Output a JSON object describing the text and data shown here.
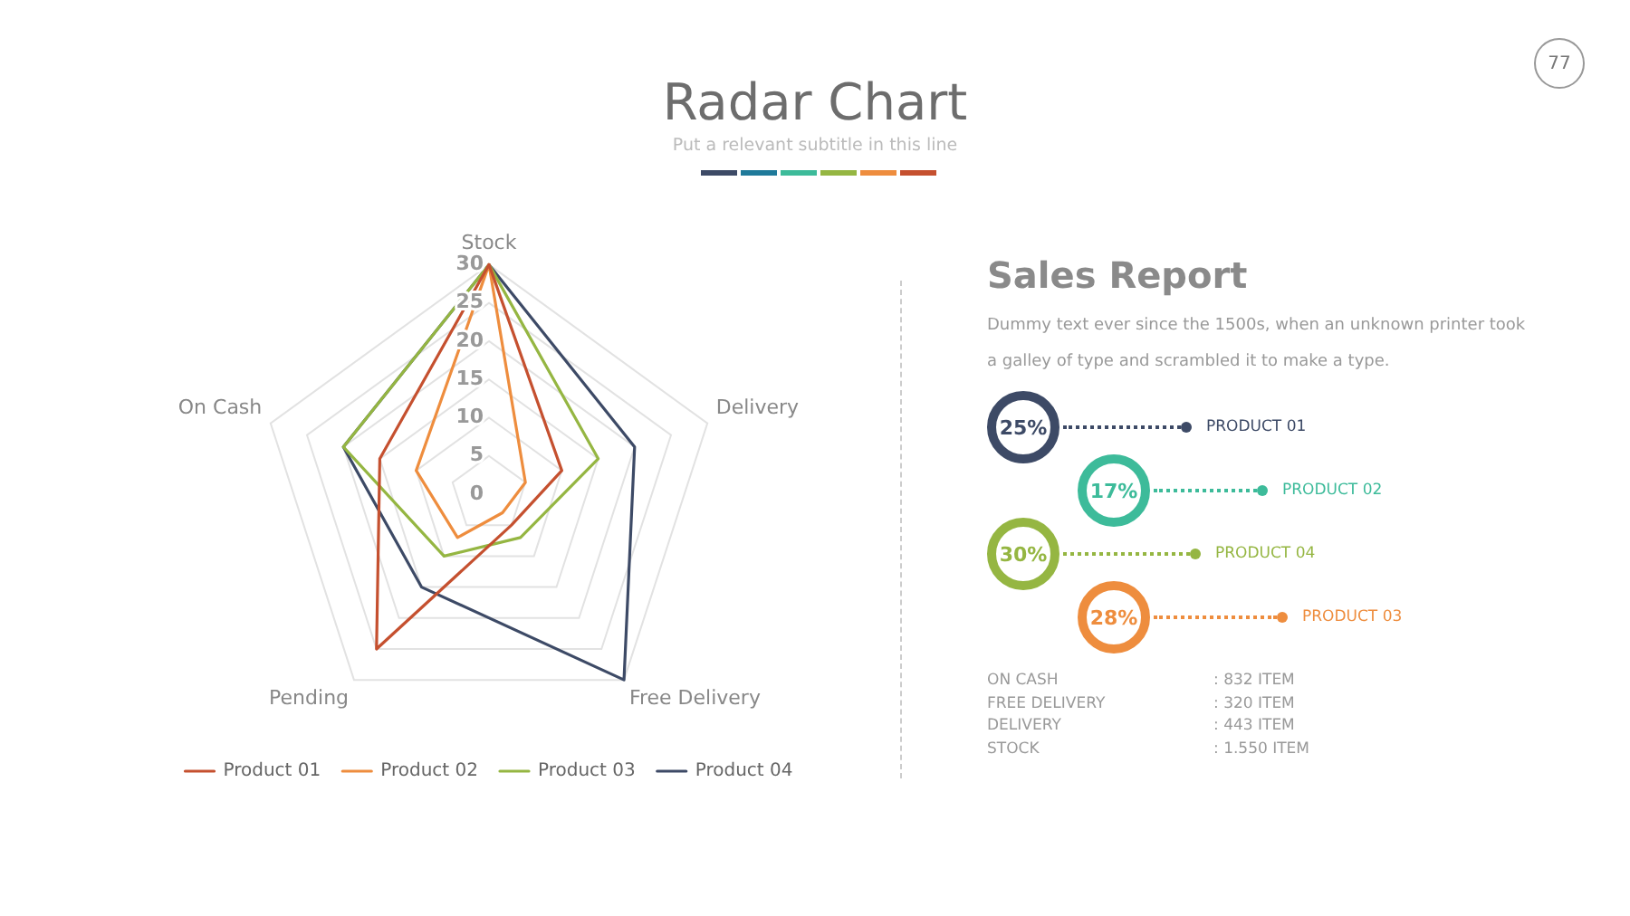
{
  "chart_data": [
    {
      "type": "radar",
      "title": "Radar Chart",
      "subtitle": "Put a relevant subtitle in this line",
      "annotations": [
        "77"
      ],
      "categories": [
        "Stock",
        "Delivery",
        "Free Delivery",
        "Pending",
        "On Cash"
      ],
      "series": [
        {
          "name": "Product 01",
          "color": "#c5502f",
          "values": [
            30,
            10,
            5,
            25,
            15
          ]
        },
        {
          "name": "Product 02",
          "color": "#ee8d3e",
          "values": [
            30,
            5,
            3,
            7,
            10
          ]
        },
        {
          "name": "Product 03",
          "color": "#95b642",
          "values": [
            30,
            15,
            7,
            10,
            20
          ]
        },
        {
          "name": "Product 04",
          "color": "#3d4a66",
          "values": [
            30,
            20,
            30,
            15,
            20
          ]
        }
      ],
      "ylim": [
        0,
        30
      ],
      "yticks": [
        0,
        5,
        10,
        15,
        20,
        25,
        30
      ],
      "grid": true,
      "legend": "bottom",
      "marker": "none",
      "line_style": "solid"
    },
    {
      "type": "other",
      "title": "Sales Report",
      "categories": [
        "PRODUCT 01",
        "PRODUCT 02",
        "PRODUCT 04",
        "PRODUCT 03"
      ],
      "values": [
        25,
        17,
        30,
        28
      ],
      "value_labels": [
        "25%",
        "17%",
        "30%",
        "28%"
      ],
      "colors": [
        "#3d4a66",
        "#3dbb9a",
        "#95b642",
        "#ee8d3e"
      ],
      "annotations": [
        "Dummy text ever since the 1500s, when an unknown printer took a galley of type and scrambled it to make a type.",
        "ON CASH",
        ": 832 ITEM",
        "FREE DELIVERY",
        ": 320 ITEM",
        "DELIVERY",
        ": 443 ITEM",
        "STOCK",
        ": 1.550 ITEM"
      ]
    }
  ]
}
